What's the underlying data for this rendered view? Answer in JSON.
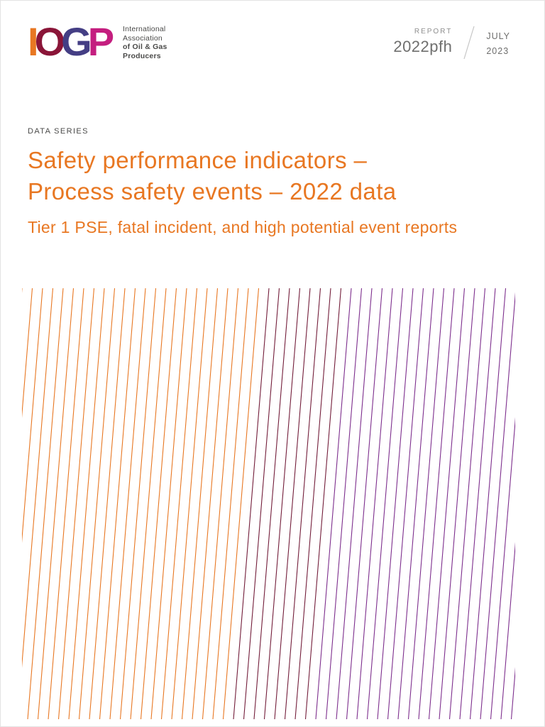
{
  "header": {
    "logo": {
      "letters": [
        {
          "char": "I",
          "color": "#E87722"
        },
        {
          "char": "O",
          "color": "#8A1538"
        },
        {
          "char": "G",
          "color": "#443E84"
        },
        {
          "char": "P",
          "color": "#C41E7F"
        }
      ],
      "org_lines": [
        "International",
        "Association",
        "of Oil & Gas",
        "Producers"
      ]
    },
    "report_label": "REPORT",
    "report_number": "2022pfh",
    "month": "JULY",
    "year": "2023"
  },
  "cover": {
    "series_label": "DATA SERIES",
    "title_lines": [
      "Safety performance indicators –",
      "Process safety events – 2022 data"
    ],
    "subtitle": "Tier 1 PSE, fatal incident, and high potential event reports",
    "accent_color": "#E87722"
  },
  "pattern": {
    "colors": {
      "orange": "#E87722",
      "dark_red": "#731D3A",
      "purple": "#7D2E8D"
    }
  }
}
